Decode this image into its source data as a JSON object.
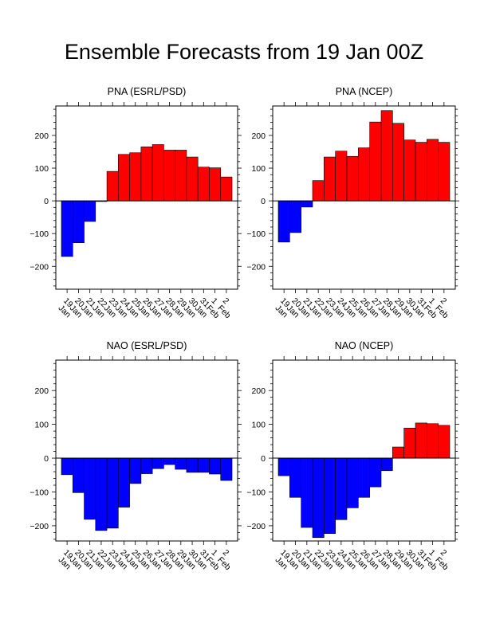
{
  "title": "Ensemble Forecasts from 19 Jan 00Z",
  "colors": {
    "positive": "#ff0000",
    "negative": "#0000ff",
    "outline": "#000000"
  },
  "chart_data": [
    {
      "type": "bar",
      "title": "PNA (ESRL/PSD)",
      "categories": [
        "19 Jan",
        "20 Jan",
        "21 Jan",
        "22 Jan",
        "23 Jan",
        "24 Jan",
        "25 Jan",
        "26 Jan",
        "27 Jan",
        "28 Jan",
        "29 Jan",
        "30 Jan",
        "31 Jan",
        "1 Feb",
        "2 Feb"
      ],
      "values": [
        -170,
        -128,
        -63,
        -2,
        90,
        142,
        147,
        165,
        172,
        155,
        155,
        134,
        103,
        101,
        73
      ],
      "ylim": [
        -270,
        290
      ],
      "yticks": [
        -200,
        -100,
        0,
        100,
        200
      ],
      "xlabel": "",
      "ylabel": ""
    },
    {
      "type": "bar",
      "title": "PNA (NCEP)",
      "categories": [
        "19 Jan",
        "20 Jan",
        "21 Jan",
        "22 Jan",
        "23 Jan",
        "24 Jan",
        "25 Jan",
        "26 Jan",
        "27 Jan",
        "28 Jan",
        "29 Jan",
        "30 Jan",
        "31 Jan",
        "1 Feb",
        "2 Feb"
      ],
      "values": [
        -126,
        -97,
        -19,
        62,
        134,
        152,
        136,
        162,
        241,
        276,
        237,
        186,
        179,
        188,
        179
      ],
      "ylim": [
        -270,
        290
      ],
      "yticks": [
        -200,
        -100,
        0,
        100,
        200
      ],
      "xlabel": "",
      "ylabel": ""
    },
    {
      "type": "bar",
      "title": "NAO (ESRL/PSD)",
      "categories": [
        "19 Jan",
        "20 Jan",
        "21 Jan",
        "22 Jan",
        "23 Jan",
        "24 Jan",
        "25 Jan",
        "26 Jan",
        "27 Jan",
        "28 Jan",
        "29 Jan",
        "30 Jan",
        "31 Jan",
        "1 Feb",
        "2 Feb"
      ],
      "values": [
        -49,
        -102,
        -181,
        -214,
        -207,
        -145,
        -75,
        -46,
        -31,
        -19,
        -33,
        -42,
        -42,
        -47,
        -66
      ],
      "ylim": [
        -245,
        290
      ],
      "yticks": [
        -200,
        -100,
        0,
        100,
        200
      ],
      "xlabel": "",
      "ylabel": ""
    },
    {
      "type": "bar",
      "title": "NAO (NCEP)",
      "categories": [
        "19 Jan",
        "20 Jan",
        "21 Jan",
        "22 Jan",
        "23 Jan",
        "24 Jan",
        "25 Jan",
        "26 Jan",
        "27 Jan",
        "28 Jan",
        "29 Jan",
        "30 Jan",
        "31 Jan",
        "1 Feb",
        "2 Feb"
      ],
      "values": [
        -52,
        -116,
        -205,
        -235,
        -223,
        -182,
        -147,
        -116,
        -85,
        -37,
        33,
        89,
        104,
        102,
        97
      ],
      "ylim": [
        -245,
        290
      ],
      "yticks": [
        -200,
        -100,
        0,
        100,
        200
      ],
      "xlabel": "",
      "ylabel": ""
    }
  ]
}
